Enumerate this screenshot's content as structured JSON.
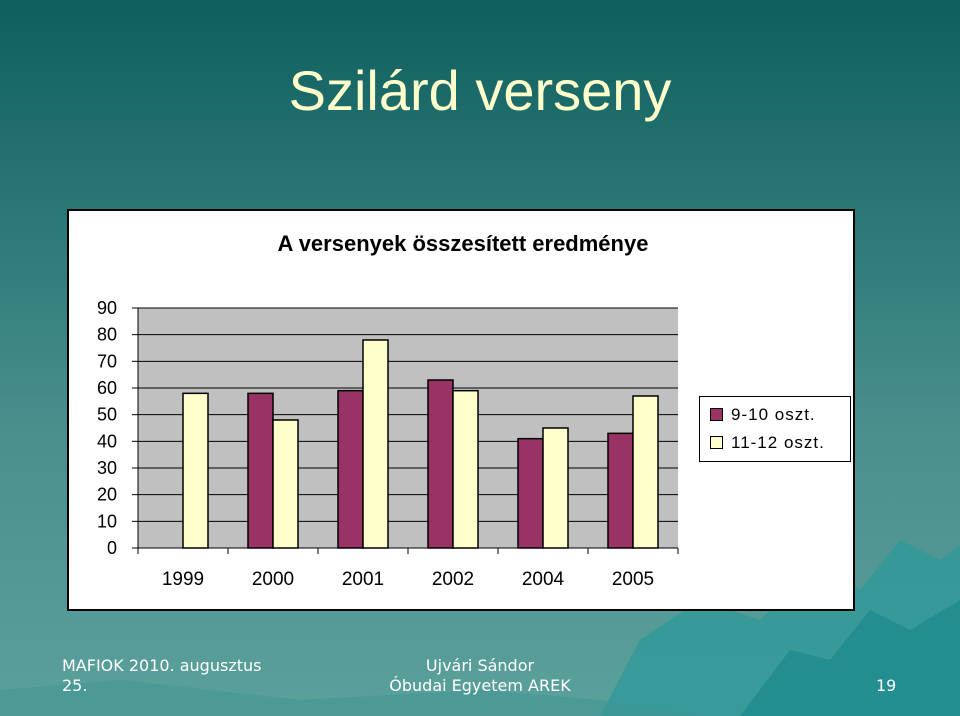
{
  "slide": {
    "title": "Szilárd verseny",
    "footer_left_line1": "MAFIOK 2010. augusztus",
    "footer_left_line2": "25.",
    "footer_center_line1": "Ujvári Sándor",
    "footer_center_line2": "Óbudai Egyetem AREK",
    "page_number": "19"
  },
  "chart_data": {
    "type": "bar",
    "title": "A versenyek összesített eredménye",
    "categories": [
      "1999",
      "2000",
      "2001",
      "2002",
      "2004",
      "2005"
    ],
    "series": [
      {
        "name": "9-10 oszt.",
        "color": "#993366",
        "values": [
          null,
          58,
          59,
          63,
          41,
          43
        ]
      },
      {
        "name": "11-12 oszt.",
        "color": "#ffffcc",
        "values": [
          58,
          48,
          78,
          59,
          45,
          57
        ]
      }
    ],
    "y_ticks": [
      "0",
      "10",
      "20",
      "30",
      "40",
      "50",
      "60",
      "70",
      "80",
      "90"
    ],
    "ylim": [
      0,
      90
    ],
    "grid": true,
    "plot_background": "#c0c0c0",
    "legend_position": "right"
  }
}
